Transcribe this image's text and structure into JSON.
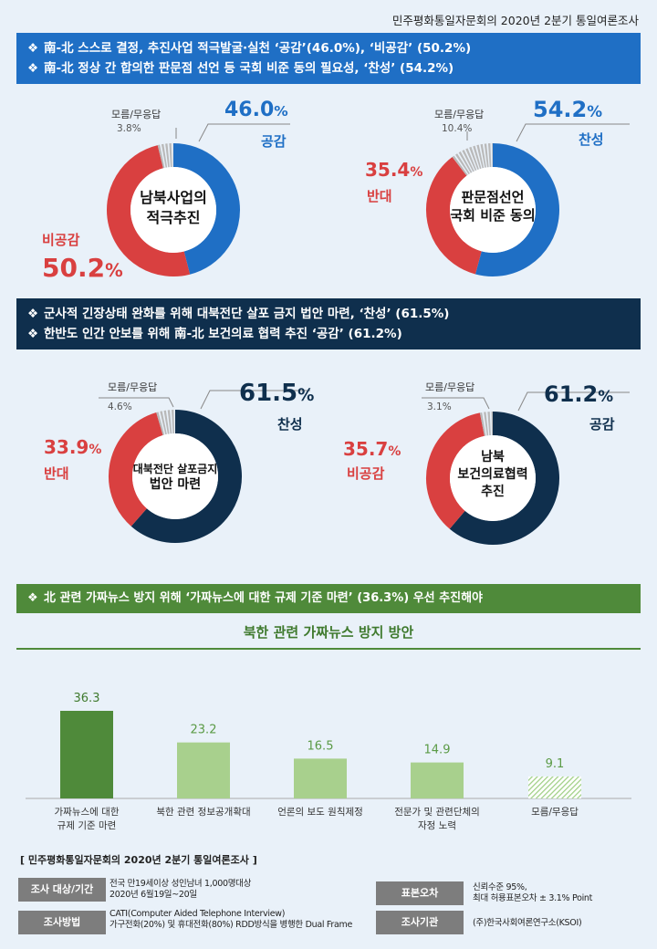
{
  "header": "민주평화통일자문회의  2020년 2분기 통일여론조사",
  "banner1": [
    "南-北 스스로 결정, 추진사업 적극발굴·실천 ‘공감’(46.0%), ‘비공감’ (50.2%)",
    "南-北 정상 간 합의한 판문점 선언 등 국회 비준 동의 필요성, ‘찬성’ (54.2%)"
  ],
  "banner2": [
    "군사적 긴장상태 완화를 위해 대북전단 살포 금지 법안 마련, ‘찬성’ (61.5%)",
    "한반도 인간 안보를 위해 南-北 보건의료 협력 추진 ‘공감’ (61.2%)"
  ],
  "banner3": "北 관련 가짜뉴스 방지 위해 ‘가짜뉴스에 대한 규제 기준 마련’ (36.3%) 우선 추진해야",
  "banner_bullet": "❖",
  "pct_sign": "%",
  "colors": {
    "blue": "#1f6fc5",
    "red": "#d94040",
    "navy": "#0f2f4d",
    "grey": "#9a9a9a",
    "green_dark": "#4f8a3a",
    "green_light": "#a8d08d"
  },
  "chart_data": [
    {
      "type": "pie",
      "title": "남북사업의 적극추진",
      "center_lines": [
        "남북사업의",
        "적극추진"
      ],
      "slices": [
        {
          "label": "공감",
          "value": 46.0,
          "display": "46.0",
          "color": "#1f6fc5"
        },
        {
          "label": "비공감",
          "value": 50.2,
          "display": "50.2",
          "color": "#d94040"
        },
        {
          "label": "모름/무응답",
          "value": 3.8,
          "display": "3.8%",
          "color": "#9a9a9a"
        }
      ]
    },
    {
      "type": "pie",
      "title": "판문점선언 국회 비준 동의",
      "center_lines": [
        "판문점선언",
        "국회 비준 동의"
      ],
      "slices": [
        {
          "label": "찬성",
          "value": 54.2,
          "display": "54.2",
          "color": "#1f6fc5"
        },
        {
          "label": "반대",
          "value": 35.4,
          "display": "35.4",
          "color": "#d94040"
        },
        {
          "label": "모름/무응답",
          "value": 10.4,
          "display": "10.4%",
          "color": "#9a9a9a"
        }
      ]
    },
    {
      "type": "pie",
      "title": "대북전단 살포금지 법안 마련",
      "center_lines": [
        "대북전단 살포금지",
        "법안 마련"
      ],
      "slices": [
        {
          "label": "찬성",
          "value": 61.5,
          "display": "61.5",
          "color": "#0f2f4d"
        },
        {
          "label": "반대",
          "value": 33.9,
          "display": "33.9",
          "color": "#d94040"
        },
        {
          "label": "모름/무응답",
          "value": 4.6,
          "display": "4.6%",
          "color": "#9a9a9a"
        }
      ]
    },
    {
      "type": "pie",
      "title": "남북 보건의료협력 추진",
      "center_lines": [
        "남북",
        "보건의료협력",
        "추진"
      ],
      "slices": [
        {
          "label": "공감",
          "value": 61.2,
          "display": "61.2",
          "color": "#0f2f4d"
        },
        {
          "label": "비공감",
          "value": 35.7,
          "display": "35.7",
          "color": "#d94040"
        },
        {
          "label": "모름/무응답",
          "value": 3.1,
          "display": "3.1%",
          "color": "#9a9a9a"
        }
      ]
    },
    {
      "type": "bar",
      "title": "북한 관련 가짜뉴스 방지 방안",
      "categories": [
        "가짜뉴스에 대한 규제 기준 마련",
        "북한 관련 정보공개확대",
        "언론의 보도 원칙제정",
        "전문가 및 관련단체의 자정 노력",
        "모름/무응답"
      ],
      "category_lines": [
        [
          "가짜뉴스에 대한",
          "규제 기준 마련"
        ],
        [
          "북한 관련 정보공개확대"
        ],
        [
          "언론의 보도 원칙제정"
        ],
        [
          "전문가 및 관련단체의",
          "자정 노력"
        ],
        [
          "모름/무응답"
        ]
      ],
      "values": [
        36.3,
        23.2,
        16.5,
        14.9,
        9.1
      ],
      "ylim": [
        0,
        45
      ]
    }
  ],
  "footer": {
    "title": "[ 민주평화통일자문회의 2020년 2분기 통일여론조사 ]",
    "rows": [
      {
        "label": "조사 대상/기간",
        "value": [
          "전국 만19세이상 성인남녀 1,000명대상",
          "2020년 6월19일~20일"
        ]
      },
      {
        "label": "조사방법",
        "value": [
          "CATI(Computer Aided Telephone Interview)",
          "가구전화(20%) 및 휴대전화(80%) RDD방식을 병행한 Dual Frame"
        ]
      },
      {
        "label": "표본오차",
        "value": [
          "신뢰수준 95%,",
          "최대 허용표본오차 ± 3.1% Point"
        ]
      },
      {
        "label": "조사기관",
        "value": [
          "(주)한국사회여론연구소(KSOI)"
        ]
      }
    ]
  }
}
